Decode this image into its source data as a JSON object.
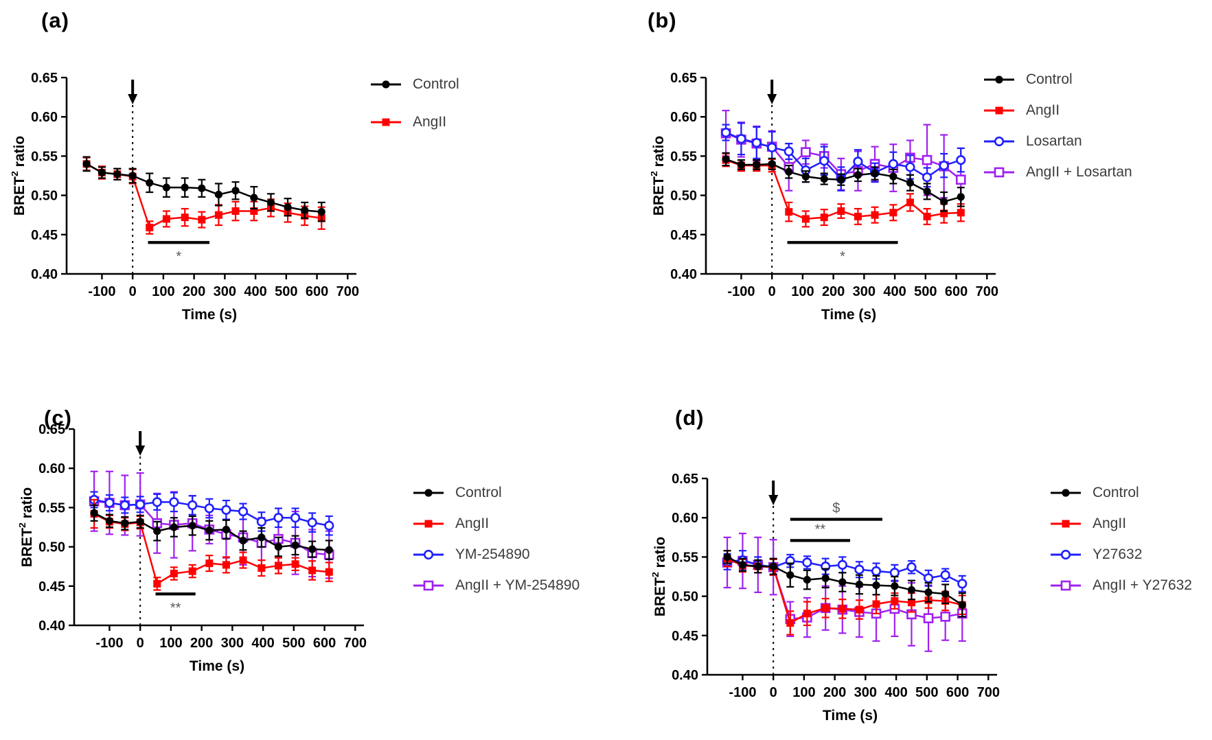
{
  "colors": {
    "black": "#000000",
    "red": "#FF0000",
    "blue": "#1F1FFF",
    "purple": "#A020F0",
    "axis": "#000000",
    "sig_label": "#5a5a5a",
    "legend_text": "#3c3c3c",
    "background": "#ffffff"
  },
  "chart_data": [
    {
      "panel": "(a)",
      "type": "line",
      "xlabel": "Time (s)",
      "ylabel_parts": [
        "BRET",
        "2",
        " ratio"
      ],
      "xlim": [
        -215,
        715
      ],
      "ylim": [
        0.4,
        0.65
      ],
      "xticks": [
        -100,
        0,
        100,
        200,
        300,
        400,
        500,
        600,
        700
      ],
      "yticks": [
        0.4,
        0.45,
        0.5,
        0.55,
        0.6,
        0.65
      ],
      "grid": false,
      "injection_time": 0,
      "x": [
        -150,
        -100,
        -50,
        0,
        55,
        110,
        170,
        225,
        280,
        335,
        395,
        450,
        505,
        560,
        615
      ],
      "series": [
        {
          "name": "Control",
          "color": "black",
          "marker": "filled-circle",
          "values": [
            0.54,
            0.529,
            0.527,
            0.525,
            0.516,
            0.51,
            0.51,
            0.509,
            0.501,
            0.506,
            0.497,
            0.491,
            0.485,
            0.481,
            0.479
          ],
          "errors": [
            0.009,
            0.007,
            0.007,
            0.009,
            0.012,
            0.012,
            0.012,
            0.011,
            0.014,
            0.011,
            0.014,
            0.011,
            0.011,
            0.01,
            0.012
          ]
        },
        {
          "name": "AngII",
          "color": "red",
          "marker": "filled-square",
          "values": [
            0.54,
            0.529,
            0.527,
            0.524,
            0.459,
            0.47,
            0.472,
            0.469,
            0.475,
            0.48,
            0.48,
            0.484,
            0.478,
            0.474,
            0.471
          ],
          "errors": [
            0.008,
            0.008,
            0.007,
            0.009,
            0.008,
            0.01,
            0.011,
            0.01,
            0.013,
            0.012,
            0.012,
            0.011,
            0.012,
            0.012,
            0.014
          ]
        }
      ],
      "sig_bars": [
        {
          "x1": 50,
          "x2": 250,
          "y": 0.44,
          "label": "*",
          "label_pos": "below"
        }
      ]
    },
    {
      "panel": "(b)",
      "type": "line",
      "xlabel": "Time (s)",
      "ylabel_parts": [
        "BRET",
        "2",
        " ratio"
      ],
      "xlim": [
        -215,
        715
      ],
      "ylim": [
        0.4,
        0.65
      ],
      "xticks": [
        -100,
        0,
        100,
        200,
        300,
        400,
        500,
        600,
        700
      ],
      "yticks": [
        0.4,
        0.45,
        0.5,
        0.55,
        0.6,
        0.65
      ],
      "grid": false,
      "injection_time": 0,
      "x": [
        -150,
        -100,
        -50,
        0,
        55,
        110,
        170,
        225,
        280,
        335,
        395,
        450,
        505,
        560,
        615
      ],
      "series": [
        {
          "name": "Control",
          "color": "black",
          "marker": "filled-circle",
          "values": [
            0.546,
            0.539,
            0.539,
            0.54,
            0.53,
            0.524,
            0.521,
            0.52,
            0.526,
            0.528,
            0.524,
            0.516,
            0.505,
            0.492,
            0.498
          ],
          "errors": [
            0.008,
            0.006,
            0.006,
            0.007,
            0.008,
            0.007,
            0.007,
            0.007,
            0.008,
            0.008,
            0.009,
            0.01,
            0.01,
            0.012,
            0.012
          ]
        },
        {
          "name": "AngII",
          "color": "red",
          "marker": "filled-square",
          "values": [
            0.545,
            0.538,
            0.538,
            0.538,
            0.479,
            0.47,
            0.472,
            0.48,
            0.473,
            0.475,
            0.478,
            0.491,
            0.473,
            0.477,
            0.478
          ],
          "errors": [
            0.008,
            0.007,
            0.007,
            0.008,
            0.012,
            0.01,
            0.01,
            0.009,
            0.01,
            0.01,
            0.01,
            0.011,
            0.01,
            0.012,
            0.011
          ]
        },
        {
          "name": "Losartan",
          "color": "blue",
          "marker": "open-circle",
          "values": [
            0.58,
            0.572,
            0.567,
            0.561,
            0.556,
            0.532,
            0.544,
            0.521,
            0.543,
            0.529,
            0.54,
            0.536,
            0.523,
            0.538,
            0.545
          ],
          "errors": [
            0.01,
            0.02,
            0.02,
            0.02,
            0.01,
            0.015,
            0.018,
            0.015,
            0.015,
            0.012,
            0.015,
            0.015,
            0.012,
            0.015,
            0.015
          ]
        },
        {
          "name": "AngII + Losartan",
          "color": "purple",
          "marker": "open-square",
          "values": [
            0.579,
            0.571,
            0.566,
            0.562,
            0.536,
            0.555,
            0.55,
            0.527,
            0.531,
            0.54,
            0.535,
            0.548,
            0.545,
            0.537,
            0.52
          ],
          "errors": [
            0.029,
            0.022,
            0.022,
            0.02,
            0.03,
            0.015,
            0.015,
            0.02,
            0.025,
            0.022,
            0.03,
            0.022,
            0.045,
            0.04,
            0.04
          ]
        }
      ],
      "sig_bars": [
        {
          "x1": 50,
          "x2": 410,
          "y": 0.44,
          "label": "*",
          "label_pos": "below"
        }
      ]
    },
    {
      "panel": "(c)",
      "type": "line",
      "xlabel": "Time (s)",
      "ylabel_parts": [
        "BRET",
        "2",
        " ratio"
      ],
      "xlim": [
        -215,
        715
      ],
      "ylim": [
        0.4,
        0.65
      ],
      "xticks": [
        -100,
        0,
        100,
        200,
        300,
        400,
        500,
        600,
        700
      ],
      "yticks": [
        0.4,
        0.45,
        0.5,
        0.55,
        0.6,
        0.65
      ],
      "grid": false,
      "injection_time": 0,
      "x": [
        -150,
        -100,
        -50,
        0,
        55,
        110,
        170,
        225,
        280,
        335,
        395,
        450,
        505,
        560,
        615
      ],
      "series": [
        {
          "name": "Control",
          "color": "black",
          "marker": "filled-circle",
          "values": [
            0.543,
            0.533,
            0.53,
            0.532,
            0.52,
            0.525,
            0.527,
            0.521,
            0.522,
            0.508,
            0.512,
            0.5,
            0.502,
            0.497,
            0.496
          ],
          "errors": [
            0.01,
            0.008,
            0.008,
            0.008,
            0.012,
            0.012,
            0.012,
            0.012,
            0.012,
            0.012,
            0.012,
            0.012,
            0.012,
            0.01,
            0.012
          ]
        },
        {
          "name": "AngII",
          "color": "red",
          "marker": "filled-square",
          "values": [
            0.542,
            0.532,
            0.529,
            0.531,
            0.453,
            0.466,
            0.469,
            0.479,
            0.477,
            0.483,
            0.473,
            0.476,
            0.478,
            0.47,
            0.468
          ],
          "errors": [
            0.018,
            0.008,
            0.008,
            0.008,
            0.008,
            0.008,
            0.008,
            0.01,
            0.01,
            0.01,
            0.01,
            0.01,
            0.008,
            0.012,
            0.012
          ]
        },
        {
          "name": "YM-254890",
          "color": "blue",
          "marker": "open-circle",
          "values": [
            0.56,
            0.556,
            0.553,
            0.554,
            0.557,
            0.557,
            0.553,
            0.549,
            0.547,
            0.545,
            0.532,
            0.537,
            0.537,
            0.531,
            0.527
          ],
          "errors": [
            0.01,
            0.01,
            0.01,
            0.01,
            0.01,
            0.012,
            0.012,
            0.012,
            0.012,
            0.01,
            0.012,
            0.012,
            0.012,
            0.012,
            0.012
          ]
        },
        {
          "name": "AngII + YM-254890",
          "color": "purple",
          "marker": "open-square",
          "values": [
            0.558,
            0.556,
            0.553,
            0.554,
            0.53,
            0.528,
            0.53,
            0.522,
            0.516,
            0.512,
            0.505,
            0.51,
            0.505,
            0.492,
            0.49
          ],
          "errors": [
            0.038,
            0.04,
            0.038,
            0.04,
            0.038,
            0.042,
            0.035,
            0.018,
            0.03,
            0.035,
            0.032,
            0.03,
            0.04,
            0.03,
            0.03
          ]
        }
      ],
      "sig_bars": [
        {
          "x1": 50,
          "x2": 180,
          "y": 0.44,
          "label": "**",
          "label_pos": "below"
        }
      ]
    },
    {
      "panel": "(d)",
      "type": "line",
      "xlabel": "Time (s)",
      "ylabel_parts": [
        "BRET",
        "2",
        " ratio"
      ],
      "xlim": [
        -215,
        715
      ],
      "ylim": [
        0.4,
        0.65
      ],
      "xticks": [
        -100,
        0,
        100,
        200,
        300,
        400,
        500,
        600,
        700
      ],
      "yticks": [
        0.4,
        0.45,
        0.5,
        0.55,
        0.6,
        0.65
      ],
      "grid": false,
      "injection_time": 0,
      "x": [
        -150,
        -100,
        -50,
        0,
        55,
        110,
        170,
        225,
        280,
        335,
        395,
        450,
        505,
        560,
        615
      ],
      "series": [
        {
          "name": "Control",
          "color": "black",
          "marker": "filled-circle",
          "values": [
            0.55,
            0.54,
            0.538,
            0.538,
            0.527,
            0.521,
            0.523,
            0.518,
            0.515,
            0.514,
            0.513,
            0.508,
            0.505,
            0.503,
            0.489
          ],
          "errors": [
            0.008,
            0.008,
            0.008,
            0.01,
            0.015,
            0.012,
            0.012,
            0.012,
            0.012,
            0.012,
            0.012,
            0.012,
            0.012,
            0.012,
            0.015
          ]
        },
        {
          "name": "AngII",
          "color": "red",
          "marker": "filled-square",
          "values": [
            0.548,
            0.539,
            0.538,
            0.537,
            0.466,
            0.478,
            0.485,
            0.484,
            0.483,
            0.49,
            0.494,
            0.492,
            0.495,
            0.494,
            0.489
          ],
          "errors": [
            0.01,
            0.008,
            0.008,
            0.01,
            0.015,
            0.015,
            0.012,
            0.012,
            0.012,
            0.012,
            0.01,
            0.012,
            0.01,
            0.012,
            0.012
          ]
        },
        {
          "name": "Y27632",
          "color": "blue",
          "marker": "open-circle",
          "values": [
            0.544,
            0.546,
            0.54,
            0.537,
            0.545,
            0.543,
            0.538,
            0.54,
            0.534,
            0.532,
            0.53,
            0.537,
            0.523,
            0.527,
            0.516
          ],
          "errors": [
            0.01,
            0.012,
            0.01,
            0.01,
            0.008,
            0.008,
            0.01,
            0.01,
            0.01,
            0.01,
            0.01,
            0.008,
            0.01,
            0.008,
            0.01
          ]
        },
        {
          "name": "AngII + Y27632",
          "color": "purple",
          "marker": "open-square",
          "values": [
            0.543,
            0.545,
            0.54,
            0.537,
            0.471,
            0.473,
            0.485,
            0.483,
            0.48,
            0.478,
            0.484,
            0.477,
            0.472,
            0.474,
            0.478
          ],
          "errors": [
            0.032,
            0.035,
            0.035,
            0.035,
            0.022,
            0.025,
            0.028,
            0.03,
            0.032,
            0.035,
            0.035,
            0.04,
            0.042,
            0.03,
            0.035
          ]
        }
      ],
      "sig_bars": [
        {
          "x1": 55,
          "x2": 355,
          "y": 0.598,
          "label": "$",
          "label_pos": "above"
        },
        {
          "x1": 55,
          "x2": 250,
          "y": 0.571,
          "label": "**",
          "label_pos": "above"
        }
      ]
    }
  ]
}
